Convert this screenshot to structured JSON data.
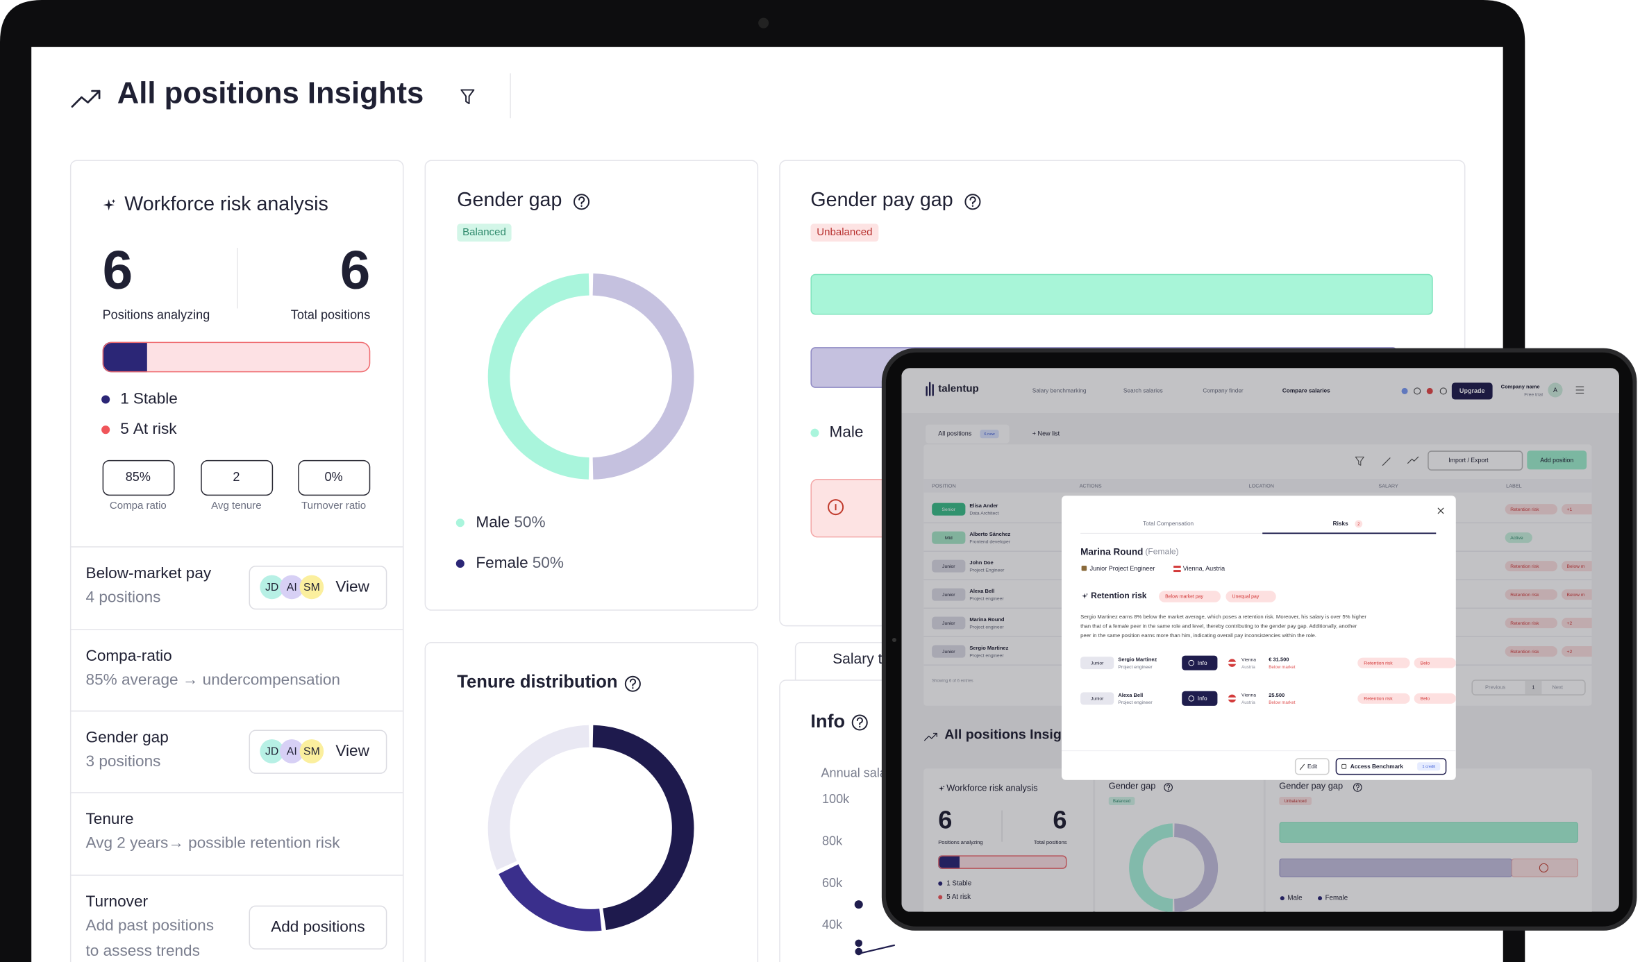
{
  "laptop": {
    "header": {
      "title": "All positions Insights"
    },
    "workforce": {
      "title": "Workforce risk analysis",
      "positions_analyzing": {
        "value": 6,
        "label": "Positions analyzing"
      },
      "total_positions": {
        "value": 6,
        "label": "Total positions"
      },
      "status": [
        {
          "count": 1,
          "label": "Stable",
          "color": "#2b2676",
          "bar_fill": "#2b2676"
        },
        {
          "count": 5,
          "label": "At risk",
          "color": "#f0555a",
          "bar_fill": "#fde1e4"
        }
      ],
      "metrics": [
        {
          "value": "85%",
          "label": "Compa ratio"
        },
        {
          "value": "2",
          "label": "Avg tenure"
        },
        {
          "value": "0%",
          "label": "Turnover ratio"
        }
      ]
    },
    "insights": [
      {
        "title": "Below-market pay",
        "detail": [
          "4 positions"
        ],
        "avatars": [
          "JD",
          "AI",
          "SM"
        ],
        "action": "View"
      },
      {
        "title": "Compa-ratio",
        "detail": [
          "85% average → undercompensation"
        ]
      },
      {
        "title": "Gender gap",
        "detail": [
          "3 positions"
        ],
        "avatars": [
          "JD",
          "AI",
          "SM"
        ],
        "action": "View"
      },
      {
        "title": "Tenure",
        "detail": [
          "Avg 2 years→ possible retention risk"
        ]
      },
      {
        "title": "Turnover",
        "detail": [
          "Add past positions",
          "to assess trends"
        ],
        "action": "Add positions"
      }
    ],
    "gender_gap": {
      "title": "Gender gap",
      "badge": "Balanced",
      "series": [
        {
          "name": "Male",
          "value": 50,
          "label": "50%",
          "color": "#a9f5dc",
          "dot": "#a9f5dc"
        },
        {
          "name": "Female",
          "value": 50,
          "label": "50%",
          "color": "#c5c1df",
          "dot": "#2b2676"
        }
      ]
    },
    "tenure": {
      "title": "Tenure distribution",
      "segments": [
        {
          "value": 48,
          "color": "#1e1a4d"
        },
        {
          "value": 20,
          "color": "#3a2f8c"
        },
        {
          "value": 32,
          "color": "#e9e8f3"
        }
      ]
    },
    "gender_pay_gap": {
      "title": "Gender pay gap",
      "badge": "Unbalanced",
      "legend": [
        "Male"
      ]
    },
    "salary_tab": "Salary t",
    "info": {
      "title": "Info",
      "axis_title": "Annual sala",
      "ticks": [
        "100k",
        "80k",
        "60k",
        "40k"
      ]
    },
    "tablet_heading": "All positions Insig"
  },
  "tablet": {
    "brand": "talentup",
    "nav": [
      "Salary benchmarking",
      "Search salaries",
      "Company finder",
      "Compare salaries"
    ],
    "upgrade": "Upgrade",
    "account": {
      "company": "Company name",
      "plan": "Free trial",
      "avatar": "A"
    },
    "lists": {
      "current": "All positions",
      "badge": "6 new",
      "new": "+ New list"
    },
    "toolbar": {
      "import": "Import / Export",
      "add": "Add position"
    },
    "columns": [
      "POSITION",
      "ACTIONS",
      "LOCATION",
      "SALARY",
      "LABEL"
    ],
    "rows": [
      {
        "level": "Senior",
        "name": "Elisa Ander",
        "role": "Data Architect",
        "labels": [
          "Retention risk",
          "+1"
        ]
      },
      {
        "level": "Mid",
        "name": "Alberto Sánchez",
        "role": "Frontend developer",
        "labels": [
          "Active"
        ]
      },
      {
        "level": "Junior",
        "name": "John Doe",
        "role": "Project Engineer",
        "labels": [
          "Retention risk",
          "Below m"
        ]
      },
      {
        "level": "Junior",
        "name": "Alexa Bell",
        "role": "Project engineer",
        "labels": [
          "Retention risk",
          "Below m"
        ]
      },
      {
        "level": "Junior",
        "name": "Marina Round",
        "role": "Project engineer",
        "labels": [
          "Retention risk",
          "+2"
        ]
      },
      {
        "level": "Junior",
        "name": "Sergio Martinez",
        "role": "Project engineer",
        "labels": [
          "Retention risk",
          "+2"
        ]
      }
    ],
    "footer": "Showing 6 of 6 entries",
    "pagination": [
      "Previous",
      "1",
      "Next"
    ],
    "insights": {
      "workforce": {
        "title": "Workforce risk analysis",
        "analyzing": 6,
        "analyzing_label": "Positions analyzing",
        "total": 6,
        "total_label": "Total positions",
        "status": [
          "1 Stable",
          "5 At risk"
        ]
      },
      "gender_gap": {
        "title": "Gender gap",
        "badge": "Balanced"
      },
      "pay_gap": {
        "title": "Gender pay gap",
        "badge": "Unbalanced",
        "legend": [
          "Male",
          "Female"
        ]
      }
    },
    "modal": {
      "tabs": [
        "Total Compensation",
        "Risks"
      ],
      "risk_count": "2",
      "name": "Marina Round",
      "gender": "(Female)",
      "role": "Junior Project Engineer",
      "location": "Vienna, Austria",
      "risk_title": "Retention risk",
      "risk_tags": [
        "Below market pay",
        "Unequal pay"
      ],
      "text": [
        "Sergio Martinez earns 8% below the market average, which poses a retention risk. Moreover, his salary is over 5% higher",
        "than that of a female peer in the same role and level, thereby contributing to the gender pay gap. Additionally, another",
        "peer in the same position earns more than him, indicating overall pay inconsistencies within the role."
      ],
      "peers": [
        {
          "level": "Junior",
          "name": "Sergio Martinez",
          "role": "Project engineer",
          "action": "Info",
          "city": "Vienna",
          "country": "Austria",
          "salary": "€ 31.500",
          "note": "Below market",
          "labels": [
            "Retention risk",
            "Belo"
          ]
        },
        {
          "level": "Junior",
          "name": "Alexa Bell",
          "role": "Project engineer",
          "action": "Info",
          "city": "Vienna",
          "country": "Austria",
          "salary": "25.500",
          "note": "Below market",
          "labels": [
            "Retention risk",
            "Belo"
          ]
        }
      ],
      "edit": "Edit",
      "benchmark": "Access Benchmark",
      "credit": "1 credit"
    }
  }
}
